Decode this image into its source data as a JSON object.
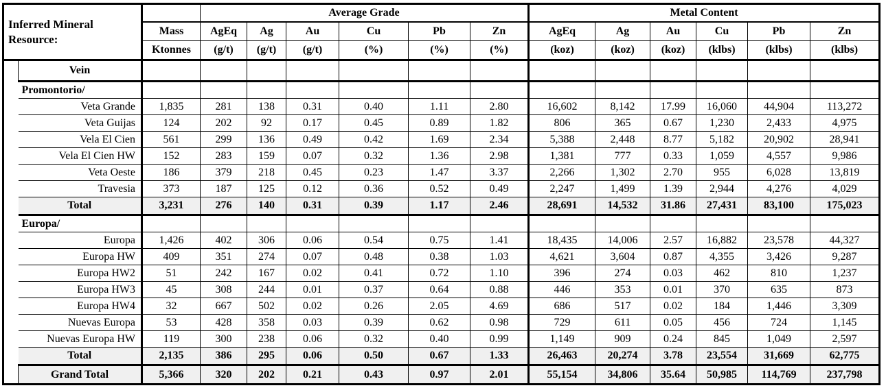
{
  "table": {
    "title": "Inferred Mineral Resource:",
    "group_headers": {
      "average_grade": "Average Grade",
      "metal_content": "Metal Content"
    },
    "columns": [
      {
        "name": "Mass",
        "unit": "Ktonnes"
      },
      {
        "name": "AgEq",
        "unit": "(g/t)"
      },
      {
        "name": "Ag",
        "unit": "(g/t)"
      },
      {
        "name": "Au",
        "unit": "(g/t)"
      },
      {
        "name": "Cu",
        "unit": "(%)"
      },
      {
        "name": "Pb",
        "unit": "(%)"
      },
      {
        "name": "Zn",
        "unit": "(%)"
      },
      {
        "name": "AgEq",
        "unit": "(koz)"
      },
      {
        "name": "Ag",
        "unit": "(koz)"
      },
      {
        "name": "Au",
        "unit": "(koz)"
      },
      {
        "name": "Cu",
        "unit": "(klbs)"
      },
      {
        "name": "Pb",
        "unit": "(klbs)"
      },
      {
        "name": "Zn",
        "unit": "(klbs)"
      }
    ],
    "rows": [
      {
        "type": "vein",
        "label": "Vein",
        "values": [
          "",
          "",
          "",
          "",
          "",
          "",
          "",
          "",
          "",
          "",
          "",
          "",
          ""
        ]
      },
      {
        "type": "section",
        "label": "Promontorio/",
        "values": [
          "",
          "",
          "",
          "",
          "",
          "",
          "",
          "",
          "",
          "",
          "",
          "",
          ""
        ]
      },
      {
        "type": "data",
        "label": "Veta Grande",
        "values": [
          "1,835",
          "281",
          "138",
          "0.31",
          "0.40",
          "1.11",
          "2.80",
          "16,602",
          "8,142",
          "17.99",
          "16,060",
          "44,904",
          "113,272"
        ]
      },
      {
        "type": "data",
        "label": "Veta Guijas",
        "values": [
          "124",
          "202",
          "92",
          "0.17",
          "0.45",
          "0.89",
          "1.82",
          "806",
          "365",
          "0.67",
          "1,230",
          "2,433",
          "4,975"
        ]
      },
      {
        "type": "data",
        "label": "Vela El Cien",
        "values": [
          "561",
          "299",
          "136",
          "0.49",
          "0.42",
          "1.69",
          "2.34",
          "5,388",
          "2,448",
          "8.77",
          "5,182",
          "20,902",
          "28,941"
        ]
      },
      {
        "type": "data",
        "label": "Vela El Cien HW",
        "values": [
          "152",
          "283",
          "159",
          "0.07",
          "0.32",
          "1.36",
          "2.98",
          "1,381",
          "777",
          "0.33",
          "1,059",
          "4,557",
          "9,986"
        ]
      },
      {
        "type": "data",
        "label": "Veta Oeste",
        "values": [
          "186",
          "379",
          "218",
          "0.45",
          "0.23",
          "1.47",
          "3.37",
          "2,266",
          "1,302",
          "2.70",
          "955",
          "6,028",
          "13,819"
        ]
      },
      {
        "type": "data",
        "label": "Travesia",
        "values": [
          "373",
          "187",
          "125",
          "0.12",
          "0.36",
          "0.52",
          "0.49",
          "2,247",
          "1,499",
          "1.39",
          "2,944",
          "4,276",
          "4,029"
        ]
      },
      {
        "type": "total",
        "label": "Total",
        "values": [
          "3,231",
          "276",
          "140",
          "0.31",
          "0.39",
          "1.17",
          "2.46",
          "28,691",
          "14,532",
          "31.86",
          "27,431",
          "83,100",
          "175,023"
        ]
      },
      {
        "type": "section",
        "label": "Europa/",
        "values": [
          "",
          "",
          "",
          "",
          "",
          "",
          "",
          "",
          "",
          "",
          "",
          "",
          ""
        ]
      },
      {
        "type": "data",
        "label": "Europa",
        "values": [
          "1,426",
          "402",
          "306",
          "0.06",
          "0.54",
          "0.75",
          "1.41",
          "18,435",
          "14,006",
          "2.57",
          "16,882",
          "23,578",
          "44,327"
        ]
      },
      {
        "type": "data",
        "label": "Europa HW",
        "values": [
          "409",
          "351",
          "274",
          "0.07",
          "0.48",
          "0.38",
          "1.03",
          "4,621",
          "3,604",
          "0.87",
          "4,355",
          "3,426",
          "9,287"
        ]
      },
      {
        "type": "data",
        "label": "Europa HW2",
        "values": [
          "51",
          "242",
          "167",
          "0.02",
          "0.41",
          "0.72",
          "1.10",
          "396",
          "274",
          "0.03",
          "462",
          "810",
          "1,237"
        ]
      },
      {
        "type": "data",
        "label": "Europa HW3",
        "values": [
          "45",
          "308",
          "244",
          "0.01",
          "0.37",
          "0.64",
          "0.88",
          "446",
          "353",
          "0.01",
          "370",
          "635",
          "873"
        ]
      },
      {
        "type": "data",
        "label": "Europa HW4",
        "values": [
          "32",
          "667",
          "502",
          "0.02",
          "0.26",
          "2.05",
          "4.69",
          "686",
          "517",
          "0.02",
          "184",
          "1,446",
          "3,309"
        ]
      },
      {
        "type": "data",
        "label": "Nuevas Europa",
        "values": [
          "53",
          "428",
          "358",
          "0.03",
          "0.39",
          "0.62",
          "0.98",
          "729",
          "611",
          "0.05",
          "456",
          "724",
          "1,145"
        ]
      },
      {
        "type": "data",
        "label": "Nuevas Europa HW",
        "values": [
          "119",
          "300",
          "238",
          "0.06",
          "0.32",
          "0.40",
          "0.99",
          "1,149",
          "909",
          "0.24",
          "845",
          "1,049",
          "2,597"
        ]
      },
      {
        "type": "total",
        "label": "Total",
        "values": [
          "2,135",
          "386",
          "295",
          "0.06",
          "0.50",
          "0.67",
          "1.33",
          "26,463",
          "20,274",
          "3.78",
          "23,554",
          "31,669",
          "62,775"
        ]
      },
      {
        "type": "grand",
        "label": "Grand Total",
        "values": [
          "5,366",
          "320",
          "202",
          "0.21",
          "0.43",
          "0.97",
          "2.01",
          "55,154",
          "34,806",
          "35.64",
          "50,985",
          "114,769",
          "237,798"
        ]
      }
    ],
    "colors": {
      "border": "#000000",
      "text": "#000000",
      "background": "#ffffff",
      "total_row_shading": "#f0f0f0"
    }
  }
}
